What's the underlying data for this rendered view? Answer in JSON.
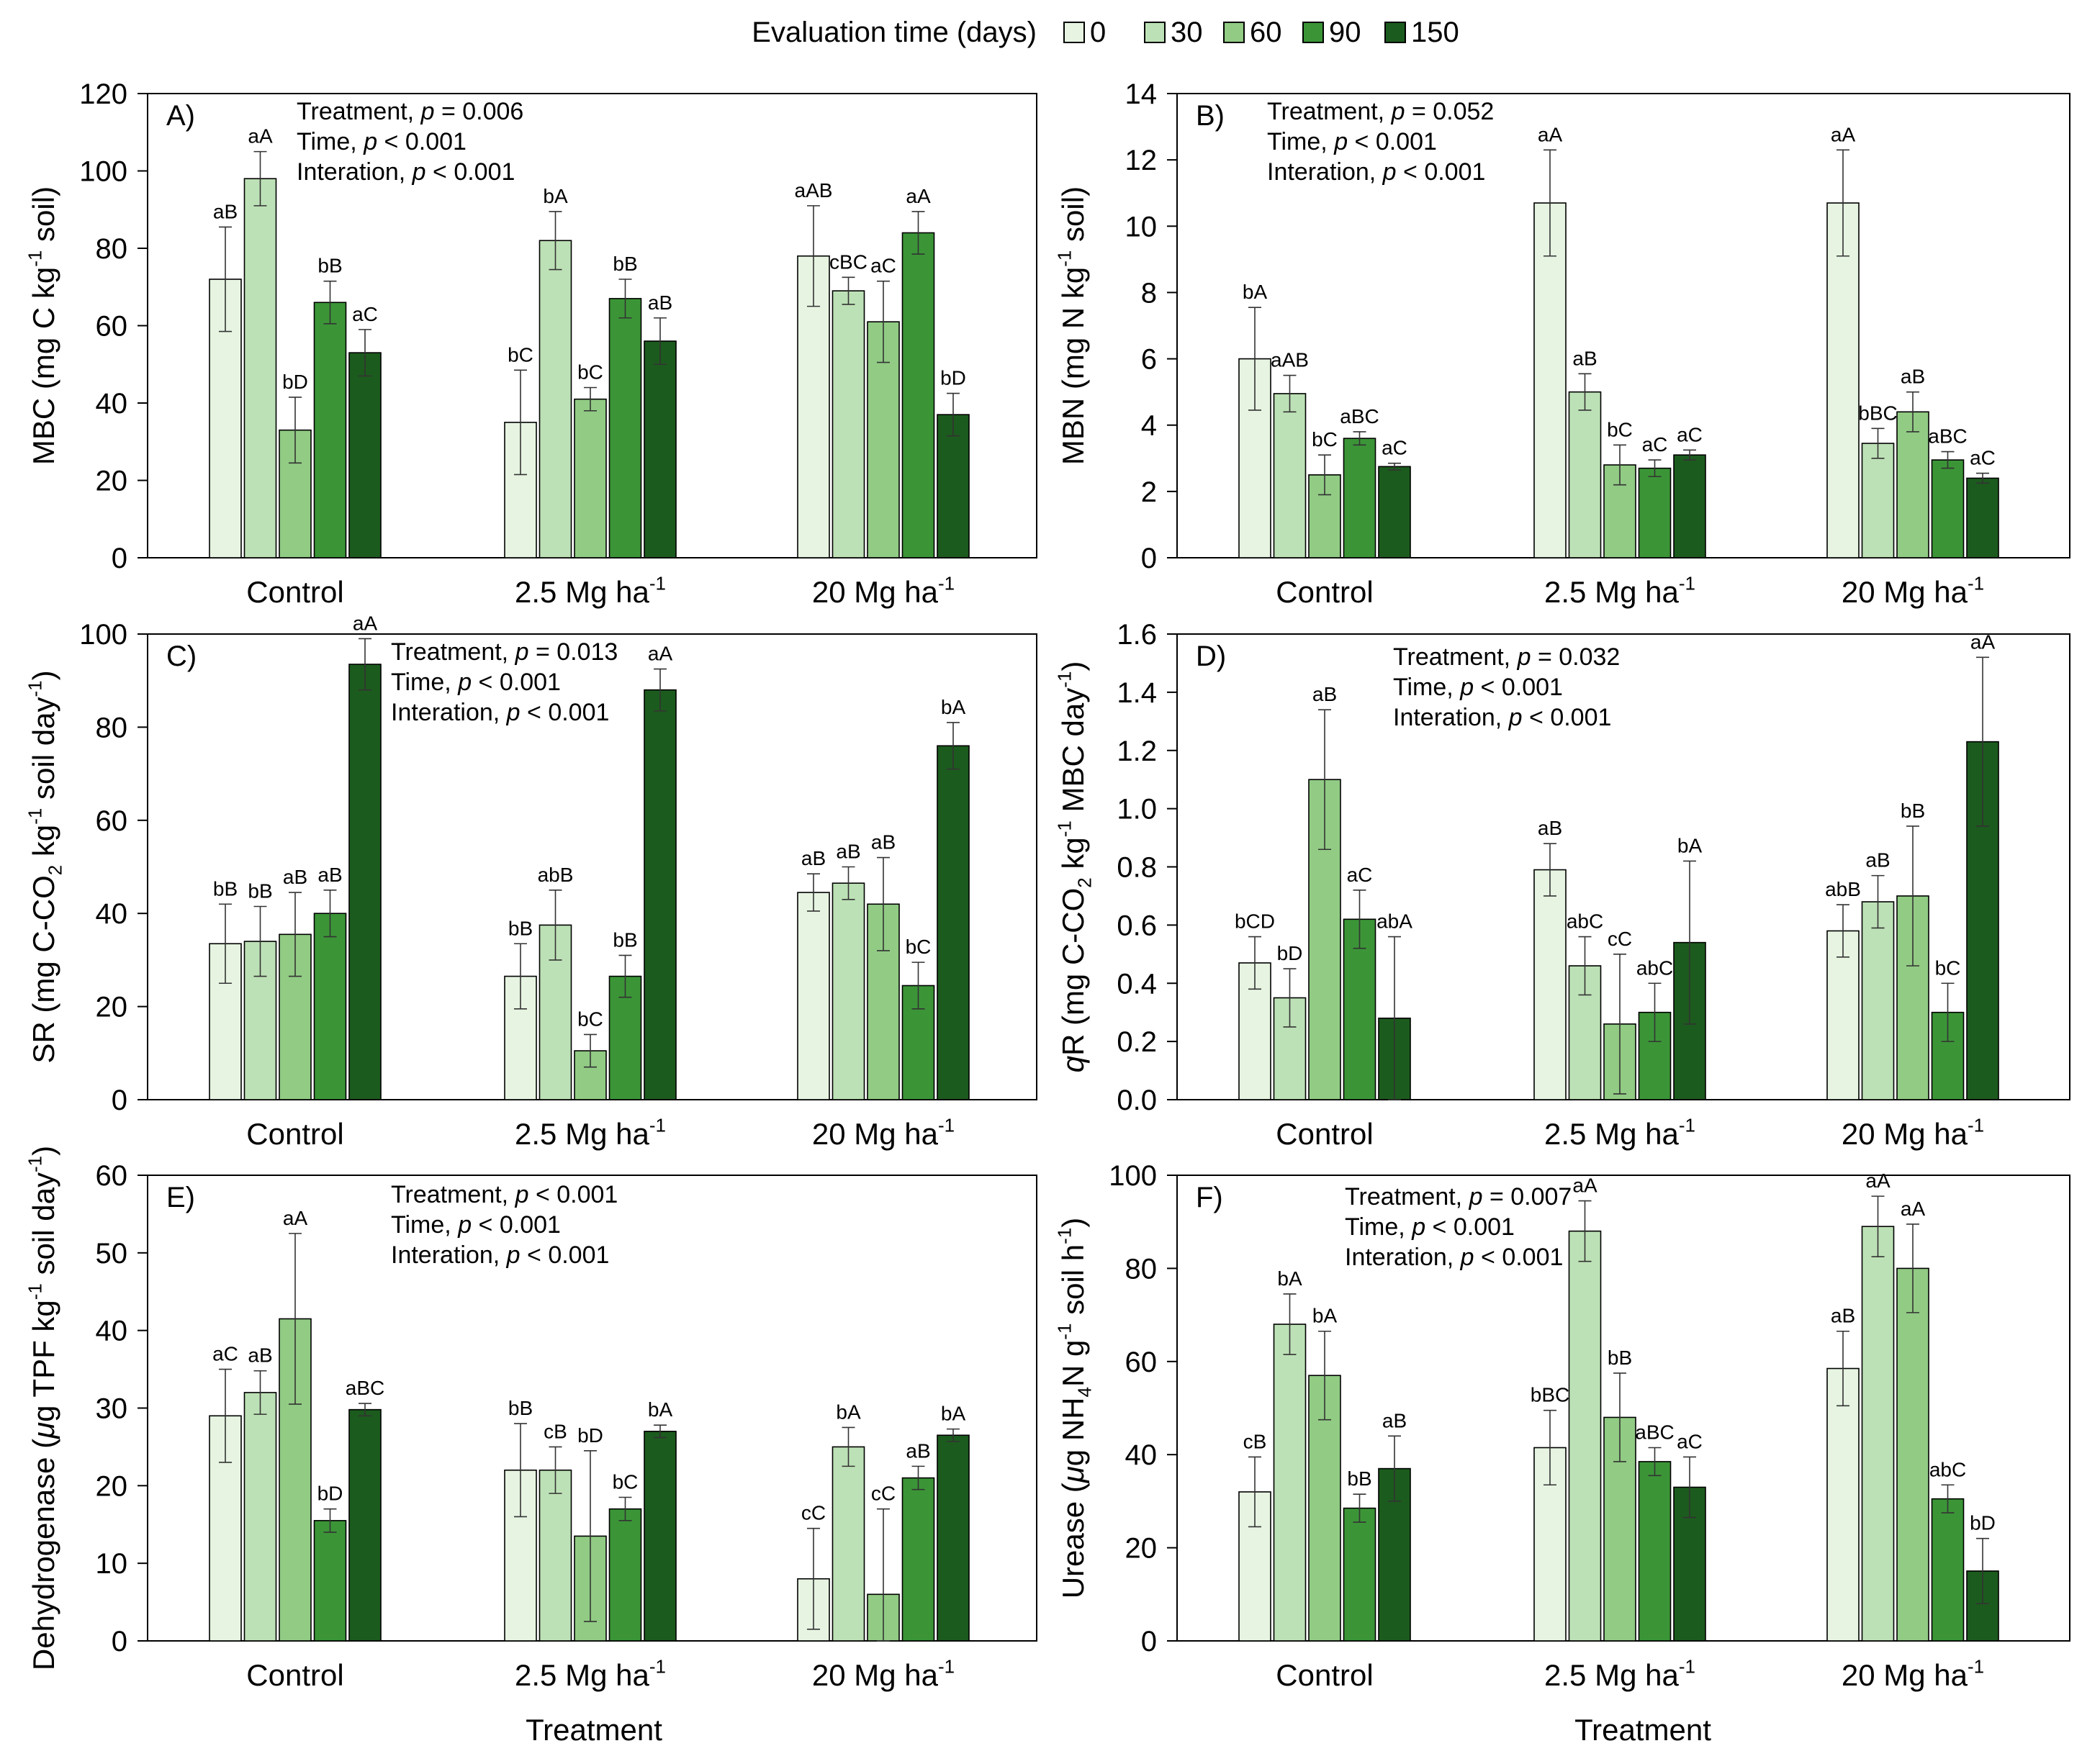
{
  "legend": {
    "title": "Evaluation time (days)",
    "entries": [
      "0",
      "30",
      "60",
      "90",
      "150"
    ],
    "colors": [
      "#E6F4E1",
      "#BDE1B6",
      "#91CB84",
      "#3B9537",
      "#1C5B1E"
    ]
  },
  "x_axis_title": "Treatment",
  "chart_data": [
    {
      "id": "A",
      "type": "bar",
      "panel_label": "A)",
      "ylabel": "MBC (mg C kg{sup:-1} soil)",
      "ylim": [
        0,
        120
      ],
      "yticks": [
        0,
        20,
        40,
        60,
        80,
        100,
        120
      ],
      "categories": [
        "Control",
        "2.5 Mg ha{sup:-1}",
        "20 Mg ha{sup:-1}"
      ],
      "stats": [
        {
          "label": "Treatment, ",
          "pvalue": "p = 0.006"
        },
        {
          "label": "Time, ",
          "pvalue": "p < 0.001"
        },
        {
          "label": "Interation, ",
          "pvalue": "p < 0.001"
        }
      ],
      "series": [
        {
          "name": "0",
          "values": [
            72,
            35,
            78
          ],
          "errors": [
            13.5,
            13.5,
            13
          ],
          "letters": [
            "aB",
            "bC",
            "aAB"
          ]
        },
        {
          "name": "30",
          "values": [
            98,
            82,
            69
          ],
          "errors": [
            7,
            7.5,
            3.5
          ],
          "letters": [
            "aA",
            "bA",
            "cBC"
          ]
        },
        {
          "name": "60",
          "values": [
            33,
            41,
            61
          ],
          "errors": [
            8.5,
            3,
            10.5
          ],
          "letters": [
            "bD",
            "bC",
            "aC"
          ]
        },
        {
          "name": "90",
          "values": [
            66,
            67,
            84
          ],
          "errors": [
            5.5,
            5,
            5.5
          ],
          "letters": [
            "bB",
            "bB",
            "aA"
          ]
        },
        {
          "name": "150",
          "values": [
            53,
            56,
            37
          ],
          "errors": [
            6,
            6,
            5.5
          ],
          "letters": [
            "aC",
            "aB",
            "bD"
          ]
        }
      ]
    },
    {
      "id": "B",
      "type": "bar",
      "panel_label": "B)",
      "ylabel": "MBN (mg N kg{sup:-1} soil)",
      "ylim": [
        0,
        14
      ],
      "yticks": [
        0,
        2,
        4,
        6,
        8,
        10,
        12,
        14
      ],
      "categories": [
        "Control",
        "2.5 Mg ha{sup:-1}",
        "20 Mg ha{sup:-1}"
      ],
      "stats": [
        {
          "label": "Treatment, ",
          "pvalue": "p = 0.052"
        },
        {
          "label": "Time, ",
          "pvalue": "p < 0.001"
        },
        {
          "label": "Interation, ",
          "pvalue": "p < 0.001"
        }
      ],
      "series": [
        {
          "name": "0",
          "values": [
            6.0,
            10.7,
            10.7
          ],
          "errors": [
            1.55,
            1.6,
            1.6
          ],
          "letters": [
            "bA",
            "aA",
            "aA"
          ]
        },
        {
          "name": "30",
          "values": [
            4.95,
            5.0,
            3.45
          ],
          "errors": [
            0.55,
            0.55,
            0.45
          ],
          "letters": [
            "aAB",
            "aB",
            "bBC"
          ]
        },
        {
          "name": "60",
          "values": [
            2.5,
            2.8,
            4.4
          ],
          "errors": [
            0.6,
            0.6,
            0.6
          ],
          "letters": [
            "bC",
            "bC",
            "aB"
          ]
        },
        {
          "name": "90",
          "values": [
            3.6,
            2.7,
            2.95
          ],
          "errors": [
            0.2,
            0.25,
            0.25
          ],
          "letters": [
            "aBC",
            "aC",
            "aBC"
          ]
        },
        {
          "name": "150",
          "values": [
            2.75,
            3.1,
            2.4
          ],
          "errors": [
            0.1,
            0.15,
            0.15
          ],
          "letters": [
            "aC",
            "aC",
            "aC"
          ]
        }
      ]
    },
    {
      "id": "C",
      "type": "bar",
      "panel_label": "C)",
      "ylabel": "SR (mg C-CO{sub:2} kg{sup:-1} soil day{sup:-1})",
      "ylim": [
        0,
        100
      ],
      "yticks": [
        0,
        20,
        40,
        60,
        80,
        100
      ],
      "categories": [
        "Control",
        "2.5 Mg ha{sup:-1}",
        "20 Mg ha{sup:-1}"
      ],
      "stats": [
        {
          "label": "Treatment, ",
          "pvalue": "p = 0.013"
        },
        {
          "label": "Time, ",
          "pvalue": "p < 0.001"
        },
        {
          "label": "Interation, ",
          "pvalue": "p < 0.001"
        }
      ],
      "series": [
        {
          "name": "0",
          "values": [
            33.5,
            26.5,
            44.5
          ],
          "errors": [
            8.5,
            7,
            4
          ],
          "letters": [
            "bB",
            "bB",
            "aB"
          ]
        },
        {
          "name": "30",
          "values": [
            34,
            37.5,
            46.5
          ],
          "errors": [
            7.5,
            7.5,
            3.5
          ],
          "letters": [
            "bB",
            "abB",
            "aB"
          ]
        },
        {
          "name": "60",
          "values": [
            35.5,
            10.5,
            42
          ],
          "errors": [
            9,
            3.5,
            10
          ],
          "letters": [
            "aB",
            "bC",
            "aB"
          ]
        },
        {
          "name": "90",
          "values": [
            40,
            26.5,
            24.5
          ],
          "errors": [
            5,
            4.5,
            5
          ],
          "letters": [
            "aB",
            "bB",
            "bC"
          ]
        },
        {
          "name": "150",
          "values": [
            93.5,
            88,
            76
          ],
          "errors": [
            5.5,
            4.5,
            5
          ],
          "letters": [
            "aA",
            "aA",
            "bA"
          ]
        }
      ]
    },
    {
      "id": "D",
      "type": "bar",
      "panel_label": "D)",
      "ylabel": "qR (mg C-CO{sub:2} kg{sup:-1} MBC day{sup:-1})",
      "ylabel_italic_prefix": "q",
      "ylim": [
        0,
        1.6
      ],
      "yticks": [
        0,
        0.2,
        0.4,
        0.6,
        0.8,
        1.0,
        1.2,
        1.4,
        1.6
      ],
      "categories": [
        "Control",
        "2.5 Mg ha{sup:-1}",
        "20 Mg ha{sup:-1}"
      ],
      "stats": [
        {
          "label": "Treatment, ",
          "pvalue": "p = 0.032"
        },
        {
          "label": "Time, ",
          "pvalue": "p < 0.001"
        },
        {
          "label": "Interation, ",
          "pvalue": "p < 0.001"
        }
      ],
      "series": [
        {
          "name": "0",
          "values": [
            0.47,
            0.79,
            0.58
          ],
          "errors": [
            0.09,
            0.09,
            0.09
          ],
          "letters": [
            "bCD",
            "aB",
            "abB"
          ]
        },
        {
          "name": "30",
          "values": [
            0.35,
            0.46,
            0.68
          ],
          "errors": [
            0.1,
            0.1,
            0.09
          ],
          "letters": [
            "bD",
            "abC",
            "aB"
          ]
        },
        {
          "name": "60",
          "values": [
            1.1,
            0.26,
            0.7
          ],
          "errors": [
            0.24,
            0.24,
            0.24
          ],
          "letters": [
            "aB",
            "cC",
            "bB"
          ]
        },
        {
          "name": "90",
          "values": [
            0.62,
            0.3,
            0.3
          ],
          "errors": [
            0.1,
            0.1,
            0.1
          ],
          "letters": [
            "aC",
            "abC",
            "bC"
          ]
        },
        {
          "name": "150",
          "values": [
            0.28,
            0.54,
            1.23
          ],
          "errors": [
            0.28,
            0.28,
            0.29
          ],
          "letters": [
            "abA",
            "bA",
            "aA"
          ]
        }
      ]
    },
    {
      "id": "E",
      "type": "bar",
      "panel_label": "E)",
      "ylabel": "Dehydrogenase ({mu}g TPF kg{sup:-1} soil day{sup:-1})",
      "ylim": [
        0,
        60
      ],
      "yticks": [
        0,
        10,
        20,
        30,
        40,
        50,
        60
      ],
      "categories": [
        "Control",
        "2.5 Mg ha{sup:-1}",
        "20 Mg ha{sup:-1}"
      ],
      "stats": [
        {
          "label": "Treatment, ",
          "pvalue": "p < 0.001"
        },
        {
          "label": "Time, ",
          "pvalue": "p < 0.001"
        },
        {
          "label": "Interation, ",
          "pvalue": "p < 0.001"
        }
      ],
      "series": [
        {
          "name": "0",
          "values": [
            29,
            22,
            8
          ],
          "errors": [
            6,
            6,
            6.5
          ],
          "letters": [
            "aC",
            "bB",
            "cC"
          ]
        },
        {
          "name": "30",
          "values": [
            32,
            22,
            25
          ],
          "errors": [
            2.8,
            3,
            2.5
          ],
          "letters": [
            "aB",
            "cB",
            "bA"
          ]
        },
        {
          "name": "60",
          "values": [
            41.5,
            13.5,
            6
          ],
          "errors": [
            11,
            11,
            11
          ],
          "letters": [
            "aA",
            "bD",
            "cC"
          ]
        },
        {
          "name": "90",
          "values": [
            15.5,
            17,
            21
          ],
          "errors": [
            1.5,
            1.5,
            1.5
          ],
          "letters": [
            "bD",
            "bC",
            "aB"
          ]
        },
        {
          "name": "150",
          "values": [
            29.8,
            27,
            26.5
          ],
          "errors": [
            0.8,
            0.8,
            0.8
          ],
          "letters": [
            "aBC",
            "bA",
            "bA"
          ]
        }
      ]
    },
    {
      "id": "F",
      "type": "bar",
      "panel_label": "F)",
      "ylabel": "Urease ({mu}g NH{sub:4}N g{sup:-1} soil h{sup:-1})",
      "ylim": [
        0,
        100
      ],
      "yticks": [
        0,
        20,
        40,
        60,
        80,
        100
      ],
      "categories": [
        "Control",
        "2.5 Mg ha{sup:-1}",
        "20 Mg ha{sup:-1}"
      ],
      "stats": [
        {
          "label": "Treatment, ",
          "pvalue": "p = 0.007"
        },
        {
          "label": "Time, ",
          "pvalue": "p < 0.001"
        },
        {
          "label": "Interation, ",
          "pvalue": "p < 0.001"
        }
      ],
      "series": [
        {
          "name": "0",
          "values": [
            32,
            41.5,
            58.5
          ],
          "errors": [
            7.5,
            8,
            8
          ],
          "letters": [
            "cB",
            "bBC",
            "aB"
          ]
        },
        {
          "name": "30",
          "values": [
            68,
            88,
            89
          ],
          "errors": [
            6.5,
            6.5,
            6.5
          ],
          "letters": [
            "bA",
            "aA",
            "aA"
          ]
        },
        {
          "name": "60",
          "values": [
            57,
            48,
            80
          ],
          "errors": [
            9.5,
            9.5,
            9.5
          ],
          "letters": [
            "bA",
            "bB",
            "aA"
          ]
        },
        {
          "name": "90",
          "values": [
            28.5,
            38.5,
            30.5
          ],
          "errors": [
            3,
            3,
            3
          ],
          "letters": [
            "bB",
            "aBC",
            "abC"
          ]
        },
        {
          "name": "150",
          "values": [
            37,
            33,
            15
          ],
          "errors": [
            7,
            6.5,
            7
          ],
          "letters": [
            "aB",
            "aC",
            "bD"
          ]
        }
      ]
    }
  ]
}
